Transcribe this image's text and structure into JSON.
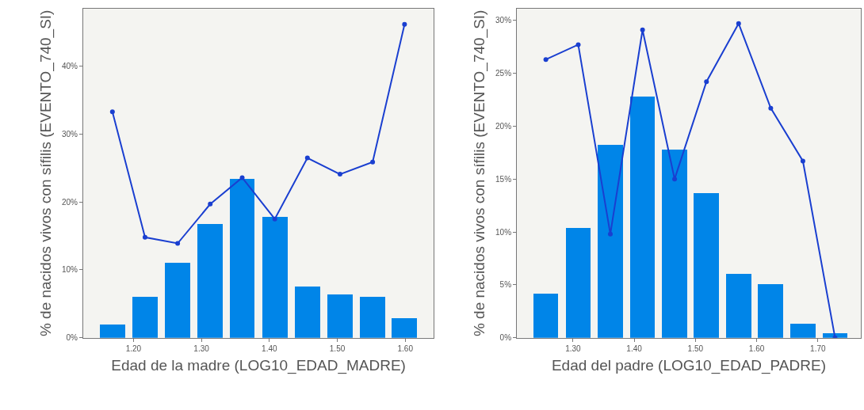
{
  "chart_data": [
    {
      "type": "bar",
      "xlabel": "Edad de la madre (LOG10_EDAD_MADRE)",
      "ylabel": "% de nacidos vivos con sífilis (EVENTO_740_SI)",
      "x": [
        1.169,
        1.217,
        1.265,
        1.313,
        1.36,
        1.408,
        1.456,
        1.504,
        1.552,
        1.599
      ],
      "series": [
        {
          "color": "#0085e8",
          "values": [
            2.0,
            6.0,
            11.1,
            16.8,
            23.4,
            17.8,
            7.5,
            6.4,
            6.0,
            2.9
          ]
        },
        {
          "type": "line",
          "color": "#1a3fd0",
          "marker": "circle",
          "values": [
            33.3,
            14.8,
            13.9,
            19.7,
            23.6,
            17.5,
            26.5,
            24.1,
            25.9,
            46.2
          ]
        }
      ],
      "xlim": [
        1.126,
        1.642
      ],
      "ylim": [
        0,
        48.5
      ],
      "xticks": [
        {
          "value": 1.2,
          "label": "1.20"
        },
        {
          "value": 1.3,
          "label": "1.30"
        },
        {
          "value": 1.4,
          "label": "1.40"
        },
        {
          "value": 1.5,
          "label": "1.50"
        },
        {
          "value": 1.6,
          "label": "1.60"
        }
      ],
      "yticks": [
        {
          "value": 0,
          "label": "0%"
        },
        {
          "value": 10,
          "label": "10%"
        },
        {
          "value": 20,
          "label": "20%"
        },
        {
          "value": 30,
          "label": "30%"
        },
        {
          "value": 40,
          "label": "40%"
        }
      ],
      "grid": false
    },
    {
      "type": "bar",
      "xlabel": "Edad del padre (LOG10_EDAD_PADRE)",
      "ylabel": "% de nacidos vivos con sífilis (EVENTO_740_SI)",
      "x": [
        1.2557,
        1.3086,
        1.361,
        1.4136,
        1.466,
        1.518,
        1.5705,
        1.623,
        1.6755,
        1.728
      ],
      "series": [
        {
          "color": "#0085e8",
          "values": [
            4.2,
            10.4,
            18.2,
            22.8,
            17.8,
            13.7,
            6.0,
            5.1,
            1.3,
            0.44
          ]
        },
        {
          "type": "line",
          "color": "#1a3fd0",
          "marker": "circle",
          "values": [
            26.3,
            27.7,
            9.8,
            29.1,
            15.0,
            24.2,
            29.7,
            21.7,
            16.7,
            0
          ]
        }
      ],
      "xlim": [
        1.2083,
        1.77
      ],
      "ylim": [
        0,
        31.1
      ],
      "xticks": [
        {
          "value": 1.3,
          "label": "1.30"
        },
        {
          "value": 1.4,
          "label": "1.40"
        },
        {
          "value": 1.5,
          "label": "1.50"
        },
        {
          "value": 1.6,
          "label": "1.60"
        },
        {
          "value": 1.7,
          "label": "1.70"
        }
      ],
      "yticks": [
        {
          "value": 0,
          "label": "0%"
        },
        {
          "value": 5,
          "label": "5%"
        },
        {
          "value": 10,
          "label": "10%"
        },
        {
          "value": 15,
          "label": "15%"
        },
        {
          "value": 20,
          "label": "20%"
        },
        {
          "value": 25,
          "label": "25%"
        },
        {
          "value": 30,
          "label": "30%"
        }
      ],
      "grid": false
    }
  ]
}
